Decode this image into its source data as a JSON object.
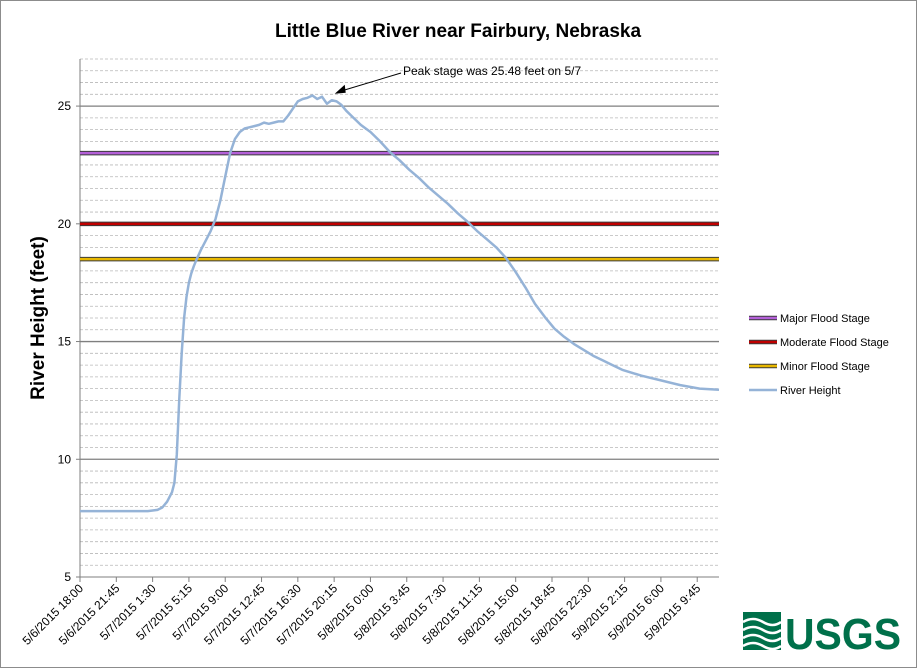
{
  "chart_data": {
    "type": "line",
    "title": "Little Blue River near Fairbury, Nebraska",
    "ylabel": "River Height (feet)",
    "xlabel": "",
    "ylim": [
      5,
      27
    ],
    "y_major_ticks": [
      5,
      10,
      15,
      20,
      25
    ],
    "y_minor_step": 0.5,
    "x_range_hours": [
      0,
      66
    ],
    "x_tick_labels": [
      "5/6/2015 18:00",
      "5/6/2015 21:45",
      "5/7/2015 1:30",
      "5/7/2015 5:15",
      "5/7/2015 9:00",
      "5/7/2015 12:45",
      "5/7/2015 16:30",
      "5/7/2015 20:15",
      "5/8/2015 0:00",
      "5/8/2015 3:45",
      "5/8/2015 7:30",
      "5/8/2015 11:15",
      "5/8/2015 15:00",
      "5/8/2015 18:45",
      "5/8/2015 22:30",
      "5/9/2015 2:15",
      "5/9/2015 6:00",
      "5/9/2015 9:45"
    ],
    "x_tick_step_hours": 3.75,
    "grid": true,
    "legend_position": "right",
    "annotation": {
      "text": "Peak stage was 25.48 feet on 5/7",
      "target_hours": 26,
      "target_value": 25.48
    },
    "series": [
      {
        "name": "Major Flood Stage",
        "type": "hline",
        "value": 23,
        "color": "#b460d8"
      },
      {
        "name": "Moderate Flood Stage",
        "type": "hline",
        "value": 20,
        "color": "#c00000"
      },
      {
        "name": "Minor Flood Stage",
        "type": "hline",
        "value": 18.5,
        "color": "#e8b800"
      },
      {
        "name": "River Height",
        "type": "line",
        "color": "#95b3d7",
        "x_hours": [
          0,
          2,
          4,
          6,
          7,
          8,
          8.5,
          9,
          9.5,
          9.75,
          10,
          10.25,
          10.5,
          10.75,
          11,
          11.25,
          11.5,
          11.75,
          12,
          12.5,
          13,
          13.5,
          14,
          14.5,
          15,
          15.5,
          16,
          16.5,
          17,
          17.5,
          18,
          18.5,
          19,
          19.5,
          20,
          20.5,
          21,
          21.5,
          22,
          22.5,
          23,
          23.5,
          24,
          24.5,
          25,
          25.5,
          26,
          26.5,
          27,
          27.5,
          28,
          29,
          30,
          31,
          32,
          33,
          34,
          35,
          36,
          37,
          38,
          39,
          40,
          41,
          42,
          43,
          44,
          45,
          46,
          47,
          48,
          49,
          50,
          51,
          52,
          53,
          54,
          55,
          56,
          58,
          60,
          62,
          64,
          66
        ],
        "values": [
          7.8,
          7.8,
          7.8,
          7.8,
          7.8,
          7.85,
          7.95,
          8.2,
          8.6,
          9.0,
          10.2,
          12.5,
          14.5,
          16.0,
          16.9,
          17.5,
          17.9,
          18.2,
          18.45,
          18.9,
          19.3,
          19.7,
          20.2,
          21.0,
          22.0,
          23.0,
          23.6,
          23.9,
          24.05,
          24.1,
          24.15,
          24.2,
          24.3,
          24.25,
          24.3,
          24.35,
          24.35,
          24.6,
          24.9,
          25.2,
          25.3,
          25.35,
          25.45,
          25.3,
          25.4,
          25.1,
          25.25,
          25.2,
          25.05,
          24.8,
          24.6,
          24.2,
          23.9,
          23.5,
          23.05,
          22.7,
          22.3,
          21.95,
          21.55,
          21.2,
          20.85,
          20.45,
          20.1,
          19.7,
          19.35,
          19.0,
          18.55,
          17.95,
          17.3,
          16.6,
          16.05,
          15.55,
          15.2,
          14.9,
          14.65,
          14.4,
          14.2,
          14.0,
          13.8,
          13.55,
          13.35,
          13.15,
          13.0,
          12.95
        ]
      }
    ]
  },
  "logo": {
    "text": "USGS",
    "color": "#00704a"
  }
}
